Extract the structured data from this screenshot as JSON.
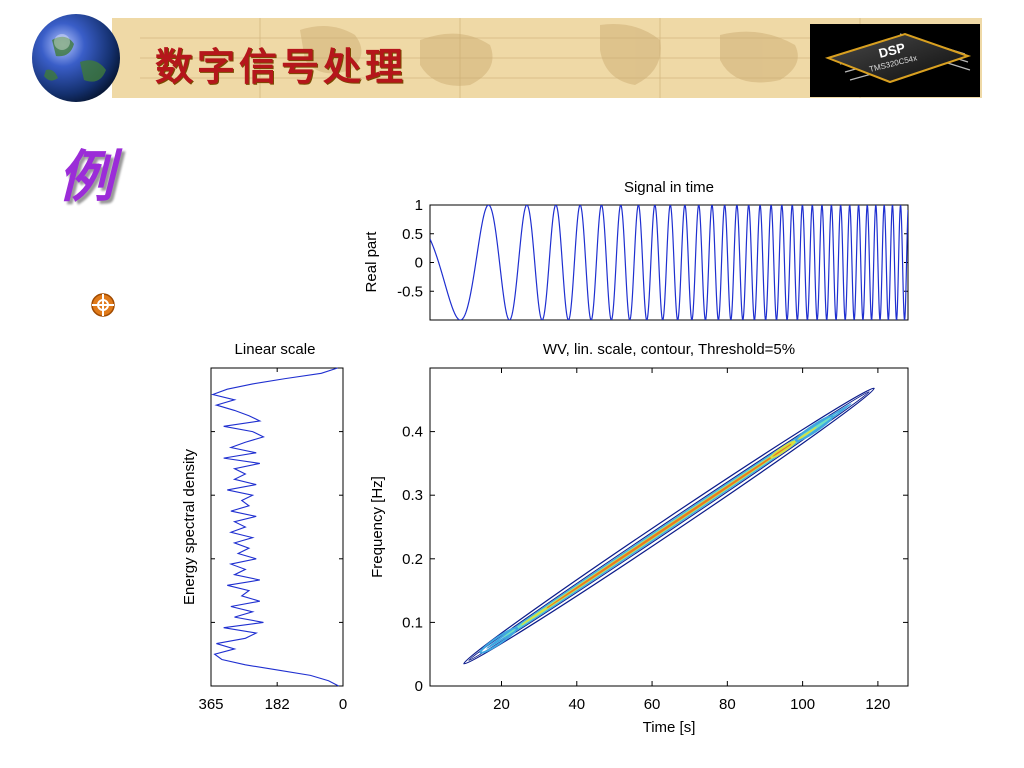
{
  "slide": {
    "title": "数字信号处理",
    "example_mark": "例",
    "chip_logo": "DSP",
    "chip_model": "TMS320C54x"
  },
  "colors": {
    "banner": "#efd9a6",
    "title": "#b5161b",
    "example_mark": "#9b2cd8",
    "signal_line": "#1f2fd0",
    "contour_outer": "#0a1a8a"
  },
  "icons": [
    "globe-icon",
    "dsp-chip-icon",
    "target-bullet-icon"
  ],
  "chart_data": [
    {
      "type": "line",
      "title": "Signal in time",
      "xlabel": "",
      "ylabel": "Real part",
      "xlim": [
        1,
        128
      ],
      "ylim": [
        -1,
        1
      ],
      "yticks": [
        -0.5,
        0,
        0.5,
        1
      ],
      "ytick_labels": [
        "-0.5",
        "0",
        "0.5",
        "1"
      ],
      "series": [
        {
          "signal": "linear chirp cos(2π(0.025t + 0.00176t²))",
          "f_start": 0.025,
          "f_end": 0.475,
          "t_samples": 128
        }
      ]
    },
    {
      "type": "line",
      "title": "Linear scale",
      "xlabel": "",
      "ylabel": "Energy spectral density",
      "orientation": "vertical",
      "xlim": [
        365,
        0
      ],
      "xticks": [
        365,
        182,
        0
      ],
      "xtick_labels": [
        "365",
        "182",
        "0"
      ],
      "ylim": [
        0,
        0.5
      ],
      "series": [
        {
          "freq": [
            0,
            0.0083,
            0.0167,
            0.025,
            0.0333,
            0.0417,
            0.05,
            0.0583,
            0.0667,
            0.075,
            0.0833,
            0.0917,
            0.1,
            0.1083,
            0.1167,
            0.125,
            0.1333,
            0.1417,
            0.15,
            0.1583,
            0.1667,
            0.175,
            0.1833,
            0.1917,
            0.2,
            0.2083,
            0.2167,
            0.225,
            0.2333,
            0.2417,
            0.25,
            0.2583,
            0.2667,
            0.275,
            0.2833,
            0.2917,
            0.3,
            0.3083,
            0.3167,
            0.325,
            0.3333,
            0.3417,
            0.35,
            0.3583,
            0.3667,
            0.375,
            0.3833,
            0.3917,
            0.4,
            0.4083,
            0.4167,
            0.425,
            0.4333,
            0.4417,
            0.45,
            0.4583,
            0.4667,
            0.475,
            0.4833,
            0.4917,
            0.5
          ],
          "esd": [
            12,
            40,
            90,
            180,
            270,
            335,
            355,
            300,
            350,
            270,
            240,
            330,
            220,
            300,
            250,
            310,
            230,
            280,
            260,
            320,
            230,
            300,
            270,
            310,
            240,
            290,
            260,
            300,
            250,
            310,
            270,
            300,
            240,
            310,
            260,
            280,
            250,
            320,
            240,
            300,
            270,
            300,
            230,
            330,
            240,
            310,
            270,
            220,
            250,
            330,
            230,
            260,
            300,
            350,
            300,
            360,
            320,
            250,
            160,
            60,
            15
          ]
        }
      ]
    },
    {
      "type": "heatmap",
      "title": "WV, lin. scale, contour, Threshold=5%",
      "xlabel": "Time [s]",
      "ylabel": "Frequency [Hz]",
      "xlim": [
        1,
        128
      ],
      "ylim": [
        0,
        0.5
      ],
      "xticks": [
        20,
        40,
        60,
        80,
        100,
        120
      ],
      "xtick_labels": [
        "20",
        "40",
        "60",
        "80",
        "100",
        "120"
      ],
      "yticks": [
        0,
        0.1,
        0.2,
        0.3,
        0.4
      ],
      "ytick_labels": [
        "0",
        "0.1",
        "0.2",
        "0.3",
        "0.4"
      ],
      "ridge": {
        "t_start": 10,
        "f_start": 0.035,
        "t_end": 119,
        "f_end": 0.468
      },
      "colormap": [
        "#0a1a8a",
        "#3fa7e0",
        "#6fe0c0",
        "#d9e040",
        "#e87a20"
      ]
    }
  ]
}
